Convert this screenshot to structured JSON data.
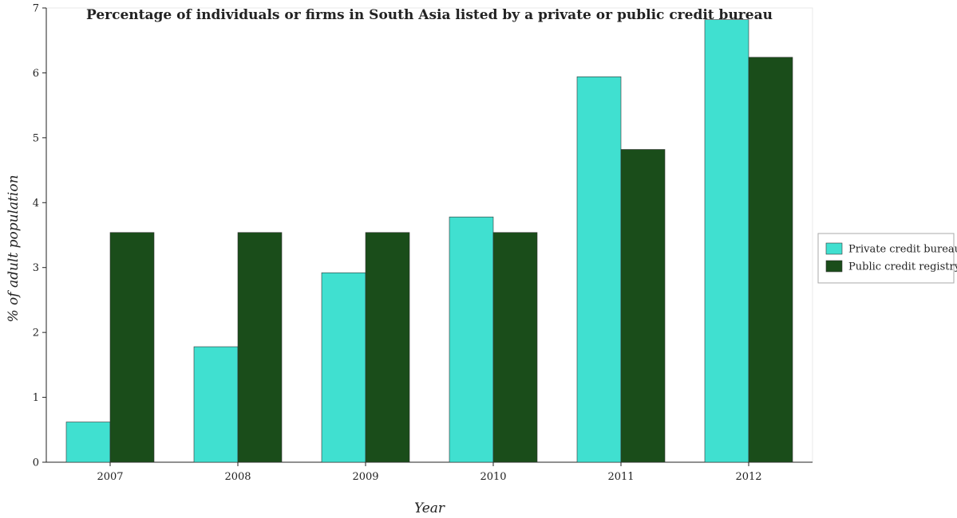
{
  "chart_data": {
    "type": "bar",
    "title": "Percentage of individuals or firms in South Asia listed by a private or public credit bureau",
    "xlabel": "Year",
    "ylabel": "% of adult population",
    "categories": [
      "2007",
      "2008",
      "2009",
      "2010",
      "2011",
      "2012"
    ],
    "ylim": [
      0,
      7
    ],
    "yticks": [
      "0",
      "1",
      "2",
      "3",
      "4",
      "5",
      "6",
      "7"
    ],
    "grid": false,
    "legend_position": "right",
    "series": [
      {
        "name": "Private credit bureau",
        "color": "#40e0d0",
        "values": [
          0.62,
          1.78,
          2.92,
          3.78,
          5.94,
          6.82
        ]
      },
      {
        "name": "Public credit registry",
        "color": "#1a4d1a",
        "values": [
          3.54,
          3.54,
          3.54,
          3.54,
          4.82,
          6.24
        ]
      }
    ]
  }
}
